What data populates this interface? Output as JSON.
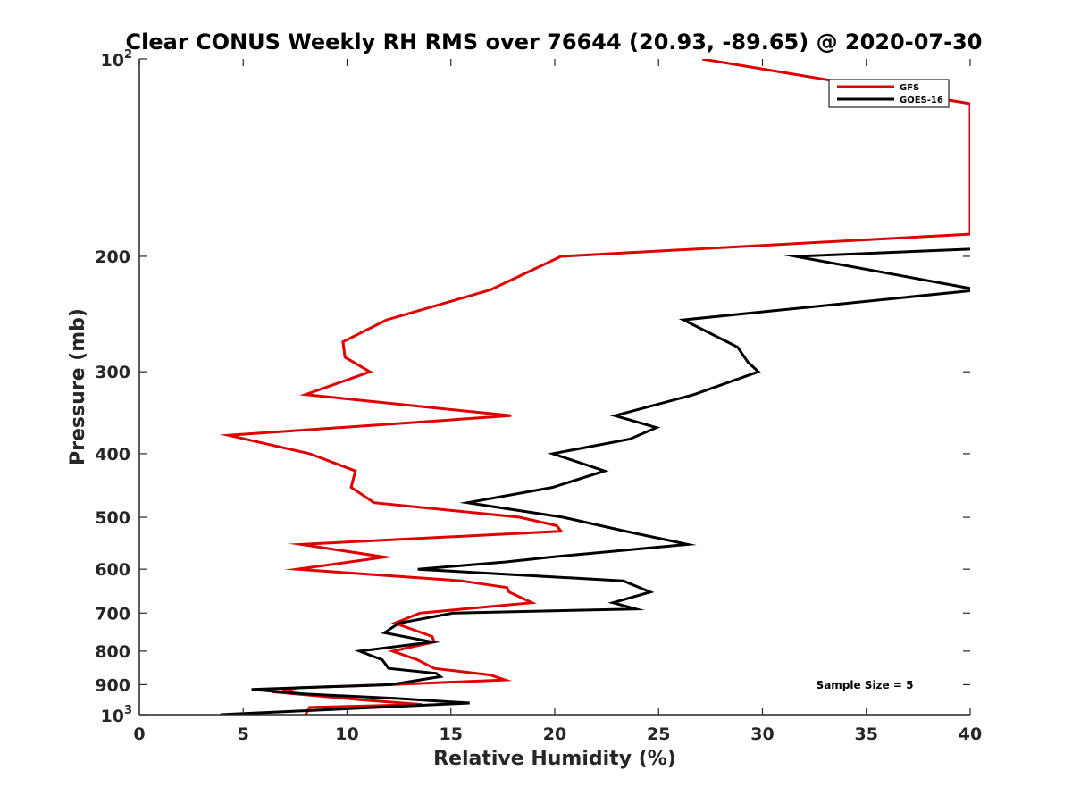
{
  "chart_data": {
    "type": "line",
    "title": "Clear CONUS Weekly RH RMS over 76644 (20.93, -89.65) @ 2020-07-30",
    "xlabel": "Relative Humidity (%)",
    "ylabel": "Pressure (mb)",
    "xlim": [
      0,
      40
    ],
    "ylim": [
      100,
      1000
    ],
    "yscale": "log",
    "yreversed": true,
    "x_ticks": [
      0,
      5,
      10,
      15,
      20,
      25,
      30,
      35,
      40
    ],
    "x_tick_labels": [
      "0",
      "5",
      "10",
      "15",
      "20",
      "25",
      "30",
      "35",
      "40"
    ],
    "y_ticks": [
      200,
      300,
      400,
      500,
      600,
      700,
      800,
      900
    ],
    "y_tick_labels": [
      "200",
      "300",
      "400",
      "500",
      "600",
      "700",
      "800",
      "900"
    ],
    "y_end_labels": [
      {
        "value": 100,
        "base": "10",
        "exponent": "2"
      },
      {
        "value": 1000,
        "base": "10",
        "exponent": "3"
      }
    ],
    "legend_position": "top-right",
    "annotation": "Sample Size = 5",
    "series": [
      {
        "name": "GFS",
        "color": "#e00000",
        "points": [
          [
            27.1,
            100
          ],
          [
            40,
            117
          ],
          [
            40,
            185
          ],
          [
            20.3,
            200
          ],
          [
            16.9,
            225
          ],
          [
            11.9,
            250
          ],
          [
            9.8,
            270
          ],
          [
            9.9,
            285
          ],
          [
            11.1,
            300
          ],
          [
            8.0,
            325
          ],
          [
            17.9,
            350
          ],
          [
            4.3,
            375
          ],
          [
            8.2,
            400
          ],
          [
            10.4,
            425
          ],
          [
            10.2,
            450
          ],
          [
            11.3,
            475
          ],
          [
            18.3,
            500
          ],
          [
            20.1,
            515
          ],
          [
            20.3,
            525
          ],
          [
            7.8,
            550
          ],
          [
            11.8,
            575
          ],
          [
            7.6,
            600
          ],
          [
            15.5,
            625
          ],
          [
            17.7,
            640
          ],
          [
            17.8,
            650
          ],
          [
            18.9,
            675
          ],
          [
            13.5,
            700
          ],
          [
            12.3,
            725
          ],
          [
            14.1,
            760
          ],
          [
            14.2,
            775
          ],
          [
            12.2,
            800
          ],
          [
            13.4,
            825
          ],
          [
            14.2,
            850
          ],
          [
            16.9,
            870
          ],
          [
            17.6,
            885
          ],
          [
            12.1,
            900
          ],
          [
            7.6,
            910
          ],
          [
            6.7,
            925
          ],
          [
            10.8,
            950
          ],
          [
            13.6,
            965
          ],
          [
            8.2,
            975
          ],
          [
            8.0,
            1000
          ]
        ]
      },
      {
        "name": "GOES-16",
        "color": "#000000",
        "points": [
          [
            40,
            195
          ],
          [
            31.6,
            200
          ],
          [
            40.4,
            225
          ],
          [
            26.2,
            250
          ],
          [
            28.8,
            275
          ],
          [
            29.3,
            290
          ],
          [
            29.8,
            300
          ],
          [
            26.7,
            325
          ],
          [
            22.9,
            350
          ],
          [
            24.9,
            365
          ],
          [
            23.6,
            380
          ],
          [
            19.9,
            400
          ],
          [
            22.4,
            425
          ],
          [
            19.9,
            450
          ],
          [
            15.8,
            475
          ],
          [
            20.4,
            500
          ],
          [
            23.4,
            525
          ],
          [
            26.4,
            550
          ],
          [
            19.8,
            575
          ],
          [
            17.6,
            585
          ],
          [
            13.4,
            600
          ],
          [
            23.3,
            625
          ],
          [
            24.6,
            650
          ],
          [
            22.8,
            675
          ],
          [
            23.9,
            690
          ],
          [
            15.1,
            700
          ],
          [
            12.5,
            725
          ],
          [
            11.8,
            750
          ],
          [
            14.1,
            775
          ],
          [
            10.6,
            800
          ],
          [
            11.7,
            825
          ],
          [
            12.0,
            850
          ],
          [
            14.3,
            865
          ],
          [
            14.5,
            875
          ],
          [
            12.1,
            900
          ],
          [
            5.4,
            915
          ],
          [
            8.0,
            930
          ],
          [
            12.5,
            945
          ],
          [
            15.9,
            960
          ],
          [
            3.9,
            1000
          ]
        ]
      }
    ]
  }
}
